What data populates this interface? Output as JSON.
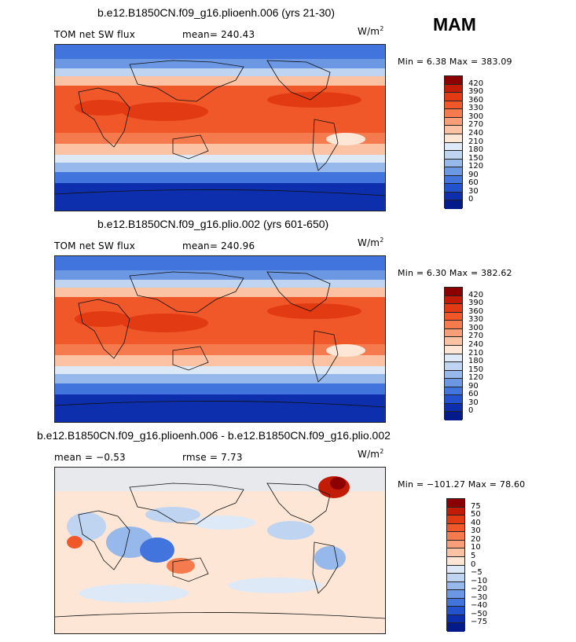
{
  "season": "MAM",
  "panels": [
    {
      "title": "b.e12.B1850CN.f09_g16.plioenh.006 (yrs 21-30)",
      "left_label": "TOM net SW flux",
      "mid_label": "mean= 240.43",
      "units": "W/m",
      "units_sup": "2",
      "minmax": "Min =   6.38 Max = 383.09",
      "levels": [
        "420",
        "390",
        "360",
        "330",
        "300",
        "270",
        "240",
        "210",
        "180",
        "150",
        "120",
        "90",
        "60",
        "30",
        "0"
      ],
      "colors": [
        "#8c0000",
        "#c21c06",
        "#e23a12",
        "#f0582a",
        "#f57b4f",
        "#f89e78",
        "#fbc3a3",
        "#fde6d6",
        "#dde9f6",
        "#bed4f1",
        "#96b8eb",
        "#6c97e3",
        "#4274de",
        "#2352cf",
        "#0d2fae",
        "#031a8a"
      ]
    },
    {
      "title": "b.e12.B1850CN.f09_g16.plio.002 (yrs 601-650)",
      "left_label": "TOM net SW flux",
      "mid_label": "mean= 240.96",
      "units": "W/m",
      "units_sup": "2",
      "minmax": "Min =   6.30 Max = 382.62",
      "levels": [
        "420",
        "390",
        "360",
        "330",
        "300",
        "270",
        "240",
        "210",
        "180",
        "150",
        "120",
        "90",
        "60",
        "30",
        "0"
      ],
      "colors": [
        "#8c0000",
        "#c21c06",
        "#e23a12",
        "#f0582a",
        "#f57b4f",
        "#f89e78",
        "#fbc3a3",
        "#fde6d6",
        "#dde9f6",
        "#bed4f1",
        "#96b8eb",
        "#6c97e3",
        "#4274de",
        "#2352cf",
        "#0d2fae",
        "#031a8a"
      ]
    },
    {
      "title": "b.e12.B1850CN.f09_g16.plioenh.006 - b.e12.B1850CN.f09_g16.plio.002",
      "left_label": "mean =  −0.53",
      "mid_label": "rmse =   7.73",
      "units": "W/m",
      "units_sup": "2",
      "minmax": "Min = −101.27 Max =  78.60",
      "levels": [
        "75",
        "50",
        "40",
        "30",
        "20",
        "10",
        "5",
        "0",
        "−5",
        "−10",
        "−20",
        "−30",
        "−40",
        "−50",
        "−75"
      ],
      "colors": [
        "#8c0000",
        "#c21c06",
        "#e23a12",
        "#f0582a",
        "#f57b4f",
        "#f89e78",
        "#fbc3a3",
        "#fde6d6",
        "#dde9f6",
        "#bed4f1",
        "#96b8eb",
        "#6c97e3",
        "#4274de",
        "#2352cf",
        "#0d2fae",
        "#031a8a"
      ]
    }
  ]
}
